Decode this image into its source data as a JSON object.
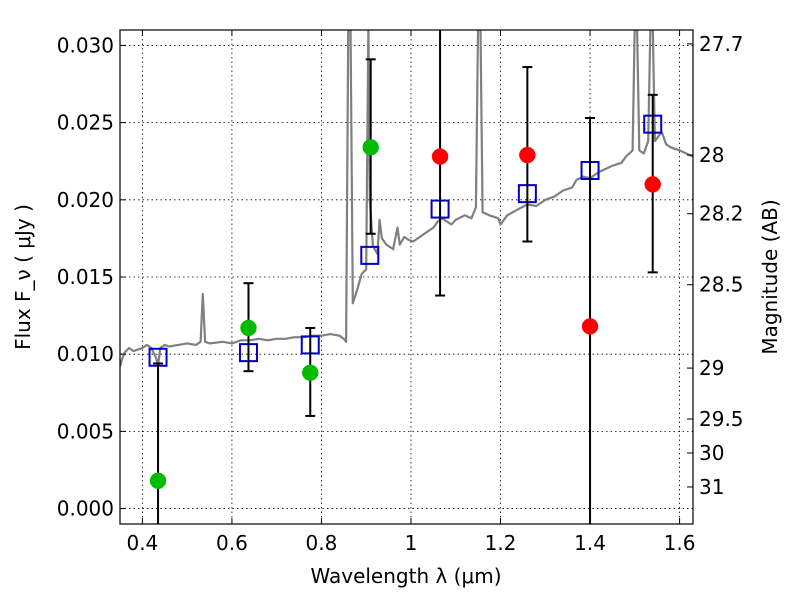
{
  "chart_data": {
    "type": "scatter",
    "title": "",
    "xlabel": "Wavelength  λ (μm)",
    "ylabel": "Flux  F_ν  ( μJy )",
    "y2label": "Magnitude (AB)",
    "xlim": [
      0.35,
      1.63
    ],
    "ylim": [
      -0.001,
      0.031
    ],
    "grid": true,
    "x_ticks": [
      0.4,
      0.6,
      0.8,
      1.0,
      1.2,
      1.4,
      1.6
    ],
    "x_tick_labels": [
      "0.4",
      "0.6",
      "0.8",
      "1",
      "1.2",
      "1.4",
      "1.6"
    ],
    "y_ticks": [
      0.0,
      0.005,
      0.01,
      0.015,
      0.02,
      0.025,
      0.03
    ],
    "y_tick_labels": [
      "0.000",
      "0.005",
      "0.010",
      "0.015",
      "0.020",
      "0.025",
      "0.030"
    ],
    "y2_ticks": [
      {
        "label": "27.7",
        "flux": 0.0301
      },
      {
        "label": "28",
        "flux": 0.0229
      },
      {
        "label": "28.2",
        "flux": 0.0191
      },
      {
        "label": "28.5",
        "flux": 0.0145
      },
      {
        "label": "29",
        "flux": 0.0091
      },
      {
        "label": "29.5",
        "flux": 0.0058
      },
      {
        "label": "30",
        "flux": 0.0036
      },
      {
        "label": "31",
        "flux": 0.0014
      }
    ],
    "series": [
      {
        "type": "line",
        "color": "#808080",
        "points": [
          [
            0.35,
            0.0092
          ],
          [
            0.355,
            0.0097
          ],
          [
            0.36,
            0.0101
          ],
          [
            0.37,
            0.0104
          ],
          [
            0.38,
            0.0102
          ],
          [
            0.39,
            0.0103
          ],
          [
            0.4,
            0.0104
          ],
          [
            0.41,
            0.0106
          ],
          [
            0.42,
            0.0104
          ],
          [
            0.43,
            0.0098
          ],
          [
            0.435,
            0.0093
          ],
          [
            0.44,
            0.0104
          ],
          [
            0.45,
            0.0106
          ],
          [
            0.46,
            0.0105
          ],
          [
            0.48,
            0.0106
          ],
          [
            0.5,
            0.0107
          ],
          [
            0.52,
            0.0106
          ],
          [
            0.53,
            0.0108
          ],
          [
            0.535,
            0.0139
          ],
          [
            0.54,
            0.0108
          ],
          [
            0.55,
            0.0107
          ],
          [
            0.58,
            0.0108
          ],
          [
            0.6,
            0.0107
          ],
          [
            0.62,
            0.0109
          ],
          [
            0.64,
            0.0109
          ],
          [
            0.66,
            0.011
          ],
          [
            0.68,
            0.0109
          ],
          [
            0.7,
            0.011
          ],
          [
            0.72,
            0.011
          ],
          [
            0.74,
            0.0111
          ],
          [
            0.76,
            0.0111
          ],
          [
            0.78,
            0.0112
          ],
          [
            0.8,
            0.0112
          ],
          [
            0.82,
            0.0113
          ],
          [
            0.84,
            0.0112
          ],
          [
            0.85,
            0.011
          ],
          [
            0.855,
            0.0108
          ],
          [
            0.86,
            0.0315
          ],
          [
            0.865,
            0.0315
          ],
          [
            0.87,
            0.0133
          ],
          [
            0.88,
            0.0142
          ],
          [
            0.89,
            0.0152
          ],
          [
            0.9,
            0.0155
          ],
          [
            0.905,
            0.0315
          ],
          [
            0.908,
            0.02
          ],
          [
            0.915,
            0.017
          ],
          [
            0.925,
            0.0165
          ],
          [
            0.93,
            0.0187
          ],
          [
            0.935,
            0.0175
          ],
          [
            0.945,
            0.0171
          ],
          [
            0.96,
            0.0168
          ],
          [
            0.97,
            0.0182
          ],
          [
            0.975,
            0.0171
          ],
          [
            0.985,
            0.0176
          ],
          [
            0.995,
            0.0174
          ],
          [
            1.005,
            0.0173
          ],
          [
            1.02,
            0.0176
          ],
          [
            1.035,
            0.0179
          ],
          [
            1.05,
            0.0182
          ],
          [
            1.06,
            0.0186
          ],
          [
            1.07,
            0.0188
          ],
          [
            1.09,
            0.0184
          ],
          [
            1.1,
            0.0187
          ],
          [
            1.12,
            0.019
          ],
          [
            1.135,
            0.0188
          ],
          [
            1.145,
            0.0195
          ],
          [
            1.15,
            0.0315
          ],
          [
            1.155,
            0.0315
          ],
          [
            1.16,
            0.0192
          ],
          [
            1.175,
            0.019
          ],
          [
            1.195,
            0.0188
          ],
          [
            1.2,
            0.0184
          ],
          [
            1.215,
            0.019
          ],
          [
            1.24,
            0.0194
          ],
          [
            1.26,
            0.0197
          ],
          [
            1.28,
            0.0196
          ],
          [
            1.3,
            0.02
          ],
          [
            1.32,
            0.0202
          ],
          [
            1.34,
            0.0206
          ],
          [
            1.36,
            0.0208
          ],
          [
            1.37,
            0.0213
          ],
          [
            1.385,
            0.0215
          ],
          [
            1.4,
            0.0214
          ],
          [
            1.42,
            0.0218
          ],
          [
            1.45,
            0.0222
          ],
          [
            1.47,
            0.0224
          ],
          [
            1.48,
            0.0228
          ],
          [
            1.495,
            0.0232
          ],
          [
            1.5,
            0.0315
          ],
          [
            1.505,
            0.0315
          ],
          [
            1.51,
            0.0232
          ],
          [
            1.52,
            0.023
          ],
          [
            1.53,
            0.0238
          ],
          [
            1.535,
            0.0315
          ],
          [
            1.54,
            0.0315
          ],
          [
            1.545,
            0.0238
          ],
          [
            1.56,
            0.0244
          ],
          [
            1.57,
            0.0236
          ],
          [
            1.58,
            0.0234
          ],
          [
            1.6,
            0.0232
          ],
          [
            1.615,
            0.023
          ],
          [
            1.63,
            0.0228
          ]
        ]
      },
      {
        "type": "scatter",
        "marker": "square-open",
        "color": "#0000cc",
        "points": [
          [
            0.435,
            0.0098
          ],
          [
            0.637,
            0.0101
          ],
          [
            0.775,
            0.0106
          ],
          [
            0.908,
            0.0164
          ],
          [
            1.065,
            0.0194
          ],
          [
            1.26,
            0.0204
          ],
          [
            1.4,
            0.0219
          ],
          [
            1.54,
            0.0249
          ]
        ]
      },
      {
        "type": "errorbar",
        "marker": "circle",
        "color": "#00bb00",
        "points": [
          {
            "x": 0.435,
            "y": 0.0018,
            "lo": -0.002,
            "hi": 0.0094
          },
          {
            "x": 0.637,
            "y": 0.0117,
            "lo": 0.0089,
            "hi": 0.0146
          },
          {
            "x": 0.775,
            "y": 0.0088,
            "lo": 0.006,
            "hi": 0.0117
          },
          {
            "x": 0.91,
            "y": 0.0234,
            "lo": 0.0178,
            "hi": 0.0291
          }
        ]
      },
      {
        "type": "errorbar",
        "marker": "circle",
        "color": "#ff0000",
        "points": [
          {
            "x": 1.065,
            "y": 0.0228,
            "lo": 0.0138,
            "hi": 0.0315
          },
          {
            "x": 1.26,
            "y": 0.0229,
            "lo": 0.0173,
            "hi": 0.0286
          },
          {
            "x": 1.4,
            "y": 0.0118,
            "lo": -0.002,
            "hi": 0.0253
          },
          {
            "x": 1.54,
            "y": 0.021,
            "lo": 0.0153,
            "hi": 0.0268
          }
        ]
      }
    ]
  }
}
